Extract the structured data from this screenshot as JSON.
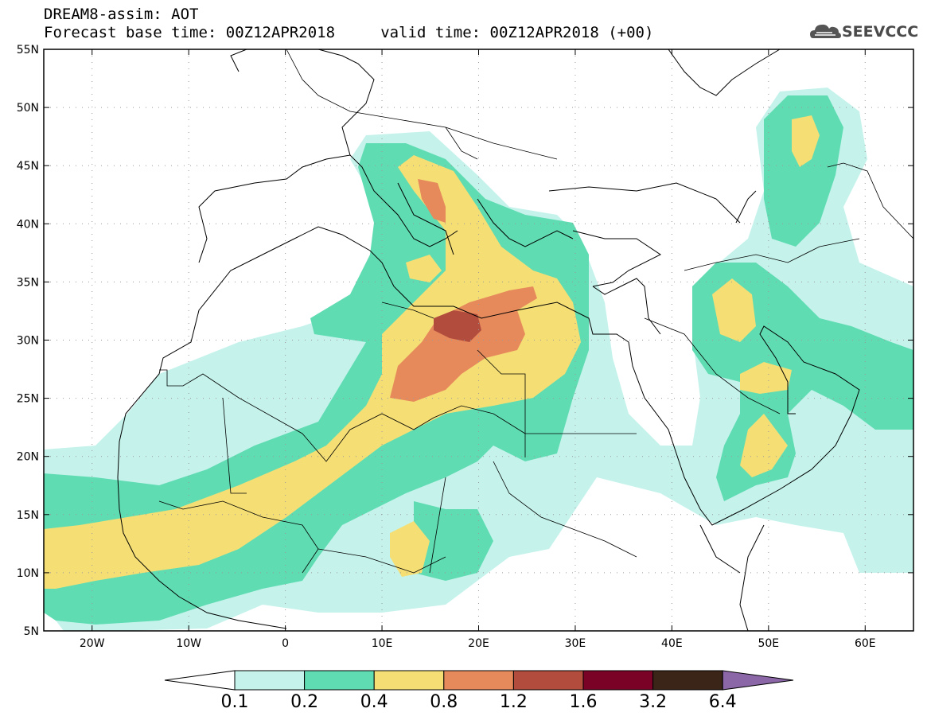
{
  "header": {
    "line1": "DREAM8-assim: AOT",
    "line2": "Forecast base time: 00Z12APR2018     valid time: 00Z12APR2018 (+00)"
  },
  "logo": {
    "text": "SEEVCCC",
    "icon": "cloud-icon"
  },
  "map": {
    "lat_ticks": [
      "55N",
      "50N",
      "45N",
      "40N",
      "35N",
      "30N",
      "25N",
      "20N",
      "15N",
      "10N",
      "5N"
    ],
    "lon_ticks": [
      "20W",
      "10W",
      "0",
      "10E",
      "20E",
      "30E",
      "40E",
      "50E",
      "60E"
    ],
    "lon_range": [
      -25,
      65
    ],
    "lat_range": [
      5,
      55
    ]
  },
  "colorbar": {
    "labels": [
      "0.1",
      "0.2",
      "0.4",
      "0.8",
      "1.2",
      "1.6",
      "3.2",
      "6.4"
    ],
    "colors": [
      "#c5f3ec",
      "#5fdcb2",
      "#f5df75",
      "#e68a5c",
      "#b24d3e",
      "#7a0226",
      "#3b2418",
      "#8b67a8"
    ]
  }
}
